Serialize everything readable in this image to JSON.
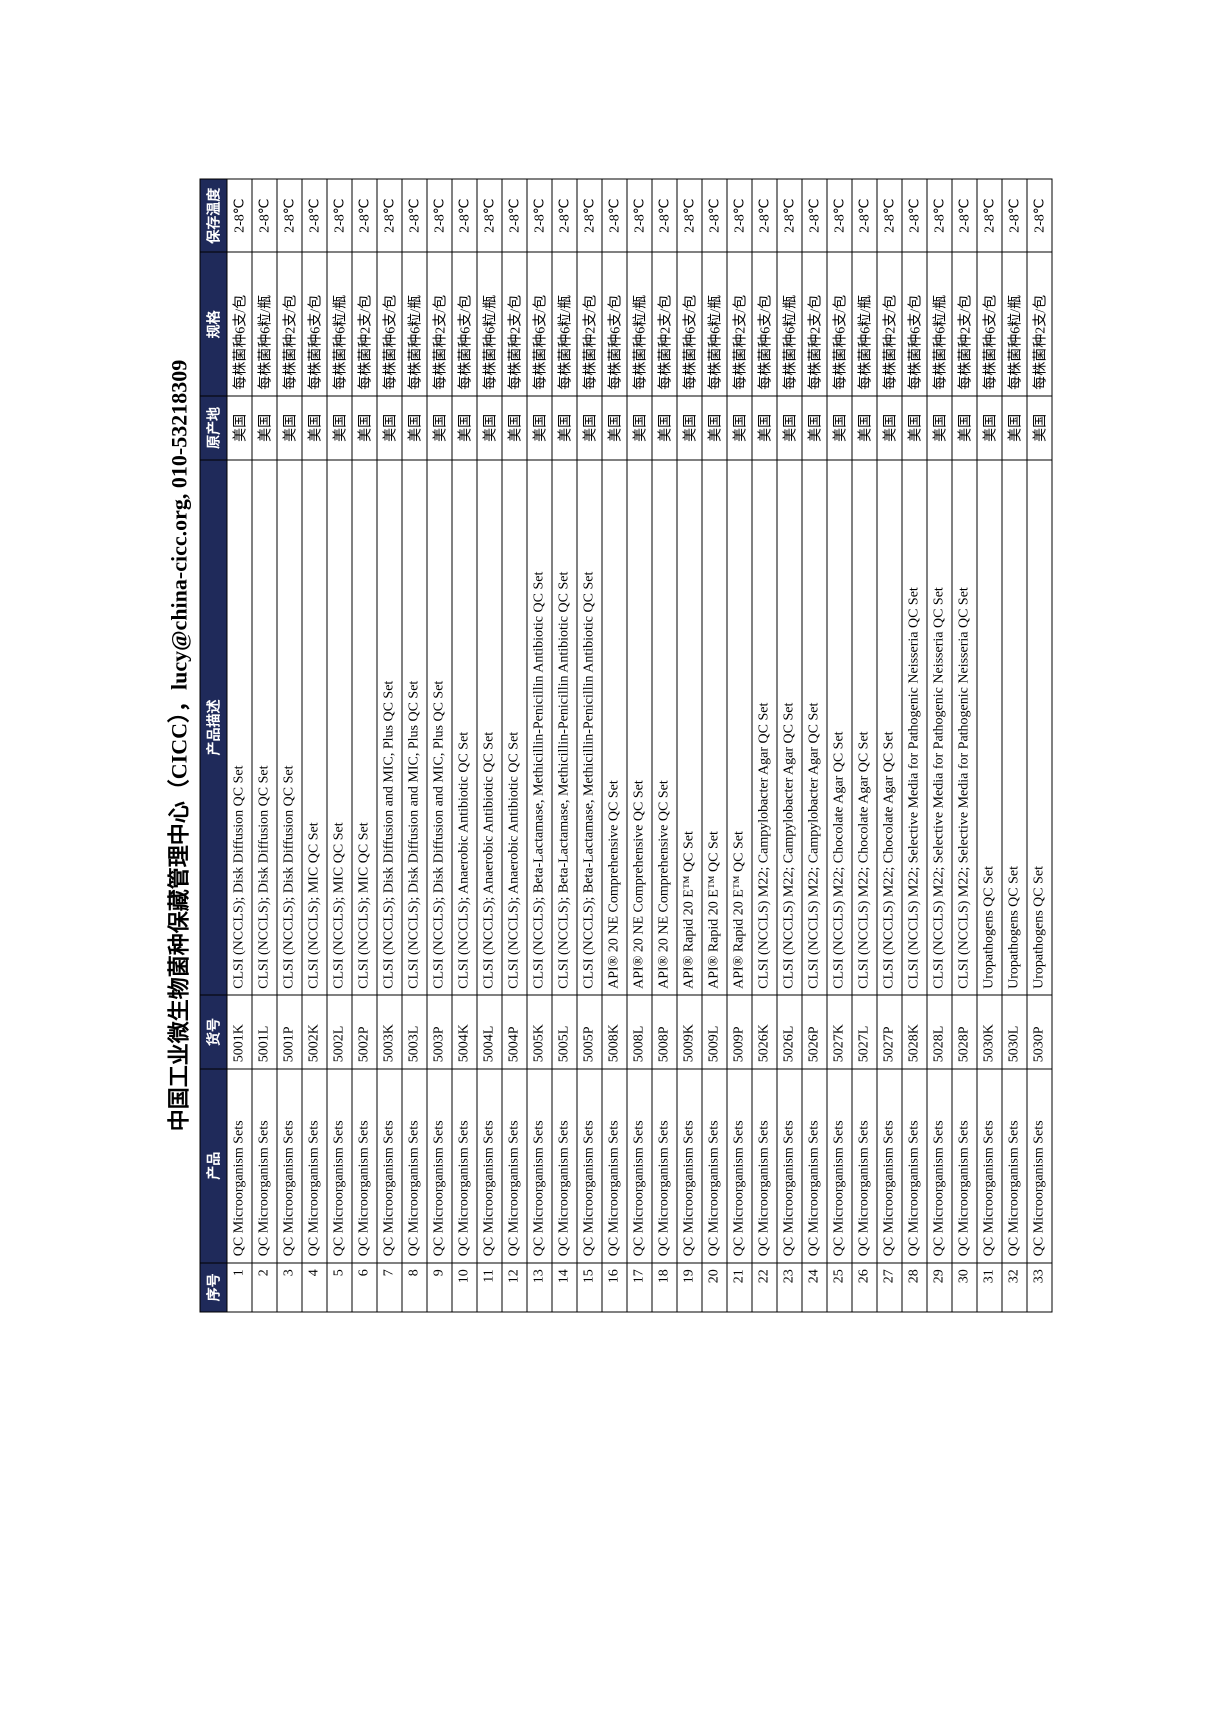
{
  "title": "中国工业微生物菌种保藏管理中心（CICC），lucy@china-cicc.org, 010-53218309",
  "columns": [
    "序号",
    "产品",
    "货号",
    "产品描述",
    "原产地",
    "规格",
    "保存温度"
  ],
  "header_bg": "#1f2a5a",
  "header_color": "#ffffff",
  "border_color": "#000000",
  "fontsize": 14,
  "rows": [
    {
      "n": 1,
      "product": "QC Microorganism Sets",
      "code": "5001K",
      "desc": "CLSI (NCCLS); Disk Diffusion QC Set",
      "origin": "美国",
      "spec": "每株菌种6支/包",
      "temp": "2-8℃"
    },
    {
      "n": 2,
      "product": "QC Microorganism Sets",
      "code": "5001L",
      "desc": "CLSI (NCCLS); Disk Diffusion QC Set",
      "origin": "美国",
      "spec": "每株菌种6粒/瓶",
      "temp": "2-8℃"
    },
    {
      "n": 3,
      "product": "QC Microorganism Sets",
      "code": "5001P",
      "desc": "CLSI (NCCLS); Disk Diffusion QC Set",
      "origin": "美国",
      "spec": "每株菌种2支/包",
      "temp": "2-8℃"
    },
    {
      "n": 4,
      "product": "QC Microorganism Sets",
      "code": "5002K",
      "desc": "CLSI (NCCLS); MIC QC Set",
      "origin": "美国",
      "spec": "每株菌种6支/包",
      "temp": "2-8℃"
    },
    {
      "n": 5,
      "product": "QC Microorganism Sets",
      "code": "5002L",
      "desc": "CLSI (NCCLS); MIC QC Set",
      "origin": "美国",
      "spec": "每株菌种6粒/瓶",
      "temp": "2-8℃"
    },
    {
      "n": 6,
      "product": "QC Microorganism Sets",
      "code": "5002P",
      "desc": "CLSI (NCCLS); MIC QC Set",
      "origin": "美国",
      "spec": "每株菌种2支/包",
      "temp": "2-8℃"
    },
    {
      "n": 7,
      "product": "QC Microorganism Sets",
      "code": "5003K",
      "desc": "CLSI (NCCLS); Disk Diffusion and MIC, Plus QC Set",
      "origin": "美国",
      "spec": "每株菌种6支/包",
      "temp": "2-8℃"
    },
    {
      "n": 8,
      "product": "QC Microorganism Sets",
      "code": "5003L",
      "desc": "CLSI (NCCLS); Disk Diffusion and MIC, Plus QC Set",
      "origin": "美国",
      "spec": "每株菌种6粒/瓶",
      "temp": "2-8℃"
    },
    {
      "n": 9,
      "product": "QC Microorganism Sets",
      "code": "5003P",
      "desc": "CLSI (NCCLS); Disk Diffusion and MIC, Plus QC Set",
      "origin": "美国",
      "spec": "每株菌种2支/包",
      "temp": "2-8℃"
    },
    {
      "n": 10,
      "product": "QC Microorganism Sets",
      "code": "5004K",
      "desc": "CLSI (NCCLS); Anaerobic Antibiotic QC Set",
      "origin": "美国",
      "spec": "每株菌种6支/包",
      "temp": "2-8℃"
    },
    {
      "n": 11,
      "product": "QC Microorganism Sets",
      "code": "5004L",
      "desc": "CLSI (NCCLS); Anaerobic Antibiotic QC Set",
      "origin": "美国",
      "spec": "每株菌种6粒/瓶",
      "temp": "2-8℃"
    },
    {
      "n": 12,
      "product": "QC Microorganism Sets",
      "code": "5004P",
      "desc": "CLSI (NCCLS); Anaerobic Antibiotic QC Set",
      "origin": "美国",
      "spec": "每株菌种2支/包",
      "temp": "2-8℃"
    },
    {
      "n": 13,
      "product": "QC Microorganism Sets",
      "code": "5005K",
      "desc": "CLSI (NCCLS); Beta-Lactamase, Methicillin-Penicillin Antibiotic QC Set",
      "origin": "美国",
      "spec": "每株菌种6支/包",
      "temp": "2-8℃"
    },
    {
      "n": 14,
      "product": "QC Microorganism Sets",
      "code": "5005L",
      "desc": "CLSI (NCCLS); Beta-Lactamase, Methicillin-Penicillin Antibiotic QC Set",
      "origin": "美国",
      "spec": "每株菌种6粒/瓶",
      "temp": "2-8℃"
    },
    {
      "n": 15,
      "product": "QC Microorganism Sets",
      "code": "5005P",
      "desc": "CLSI (NCCLS); Beta-Lactamase, Methicillin-Penicillin Antibiotic QC Set",
      "origin": "美国",
      "spec": "每株菌种2支/包",
      "temp": "2-8℃"
    },
    {
      "n": 16,
      "product": "QC Microorganism Sets",
      "code": "5008K",
      "desc": "API® 20 NE Comprehensive QC Set",
      "origin": "美国",
      "spec": "每株菌种6支/包",
      "temp": "2-8℃"
    },
    {
      "n": 17,
      "product": "QC Microorganism Sets",
      "code": "5008L",
      "desc": "API® 20 NE Comprehensive QC Set",
      "origin": "美国",
      "spec": "每株菌种6粒/瓶",
      "temp": "2-8℃"
    },
    {
      "n": 18,
      "product": "QC Microorganism Sets",
      "code": "5008P",
      "desc": "API® 20 NE Comprehensive QC Set",
      "origin": "美国",
      "spec": "每株菌种2支/包",
      "temp": "2-8℃"
    },
    {
      "n": 19,
      "product": "QC Microorganism Sets",
      "code": "5009K",
      "desc": "API® Rapid 20 E™ QC Set",
      "origin": "美国",
      "spec": "每株菌种6支/包",
      "temp": "2-8℃"
    },
    {
      "n": 20,
      "product": "QC Microorganism Sets",
      "code": "5009L",
      "desc": "API® Rapid 20 E™ QC Set",
      "origin": "美国",
      "spec": "每株菌种6粒/瓶",
      "temp": "2-8℃"
    },
    {
      "n": 21,
      "product": "QC Microorganism Sets",
      "code": "5009P",
      "desc": "API® Rapid 20 E™ QC Set",
      "origin": "美国",
      "spec": "每株菌种2支/包",
      "temp": "2-8℃"
    },
    {
      "n": 22,
      "product": "QC Microorganism Sets",
      "code": "5026K",
      "desc": "CLSI (NCCLS) M22; Campylobacter Agar QC Set",
      "origin": "美国",
      "spec": "每株菌种6支/包",
      "temp": "2-8℃"
    },
    {
      "n": 23,
      "product": "QC Microorganism Sets",
      "code": "5026L",
      "desc": "CLSI (NCCLS) M22; Campylobacter Agar QC Set",
      "origin": "美国",
      "spec": "每株菌种6粒/瓶",
      "temp": "2-8℃"
    },
    {
      "n": 24,
      "product": "QC Microorganism Sets",
      "code": "5026P",
      "desc": "CLSI (NCCLS) M22; Campylobacter Agar QC Set",
      "origin": "美国",
      "spec": "每株菌种2支/包",
      "temp": "2-8℃"
    },
    {
      "n": 25,
      "product": "QC Microorganism Sets",
      "code": "5027K",
      "desc": "CLSI (NCCLS) M22; Chocolate Agar QC Set",
      "origin": "美国",
      "spec": "每株菌种6支/包",
      "temp": "2-8℃"
    },
    {
      "n": 26,
      "product": "QC Microorganism Sets",
      "code": "5027L",
      "desc": "CLSI (NCCLS) M22; Chocolate Agar QC Set",
      "origin": "美国",
      "spec": "每株菌种6粒/瓶",
      "temp": "2-8℃"
    },
    {
      "n": 27,
      "product": "QC Microorganism Sets",
      "code": "5027P",
      "desc": "CLSI (NCCLS) M22; Chocolate Agar QC Set",
      "origin": "美国",
      "spec": "每株菌种2支/包",
      "temp": "2-8℃"
    },
    {
      "n": 28,
      "product": "QC Microorganism Sets",
      "code": "5028K",
      "desc": "CLSI (NCCLS) M22; Selective Media for Pathogenic Neisseria QC Set",
      "origin": "美国",
      "spec": "每株菌种6支/包",
      "temp": "2-8℃"
    },
    {
      "n": 29,
      "product": "QC Microorganism Sets",
      "code": "5028L",
      "desc": "CLSI (NCCLS) M22; Selective Media for Pathogenic Neisseria QC Set",
      "origin": "美国",
      "spec": "每株菌种6粒/瓶",
      "temp": "2-8℃"
    },
    {
      "n": 30,
      "product": "QC Microorganism Sets",
      "code": "5028P",
      "desc": "CLSI (NCCLS) M22; Selective Media for Pathogenic Neisseria QC Set",
      "origin": "美国",
      "spec": "每株菌种2支/包",
      "temp": "2-8℃"
    },
    {
      "n": 31,
      "product": "QC Microorganism Sets",
      "code": "5030K",
      "desc": "Uropathogens QC Set",
      "origin": "美国",
      "spec": "每株菌种6支/包",
      "temp": "2-8℃"
    },
    {
      "n": 32,
      "product": "QC Microorganism Sets",
      "code": "5030L",
      "desc": "Uropathogens QC Set",
      "origin": "美国",
      "spec": "每株菌种6粒/瓶",
      "temp": "2-8℃"
    },
    {
      "n": 33,
      "product": "QC Microorganism Sets",
      "code": "5030P",
      "desc": "Uropathogens QC Set",
      "origin": "美国",
      "spec": "每株菌种2支/包",
      "temp": "2-8℃"
    }
  ]
}
